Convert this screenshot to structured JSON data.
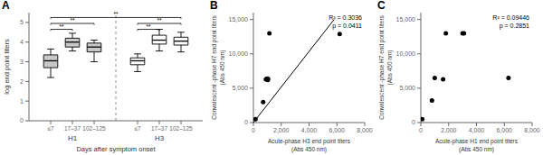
{
  "chart_data": [
    {
      "type": "box",
      "title": "A",
      "ylabel": "log end point titers",
      "xlabel": "Days after symptom onset",
      "categories": [
        "≤7",
        "17–37",
        "102–125"
      ],
      "series": [
        {
          "name": "H1",
          "color": "#c8c8c8",
          "boxes": [
            {
              "q1": 2.7,
              "median": 3.05,
              "q3": 3.35,
              "whislo": 2.2,
              "whishi": 3.65
            },
            {
              "q1": 3.75,
              "median": 4.0,
              "q3": 4.2,
              "whislo": 3.55,
              "whishi": 4.45
            },
            {
              "q1": 3.5,
              "median": 3.75,
              "q3": 3.95,
              "whislo": 3.0,
              "whishi": 4.1
            }
          ]
        },
        {
          "name": "H3",
          "color": "#ffffff",
          "boxes": [
            {
              "q1": 2.85,
              "median": 3.05,
              "q3": 3.2,
              "whislo": 2.5,
              "whishi": 3.4
            },
            {
              "q1": 3.9,
              "median": 4.1,
              "q3": 4.35,
              "whislo": 3.55,
              "whishi": 4.65
            },
            {
              "q1": 3.85,
              "median": 4.05,
              "q3": 4.25,
              "whislo": 3.5,
              "whishi": 4.5
            }
          ]
        }
      ],
      "ylim": [
        0,
        5.5
      ],
      "yticks": [
        0,
        1,
        2,
        3,
        4,
        5
      ],
      "grid": false,
      "brackets": [
        {
          "from": {
            "series": "H1",
            "category": "≤7"
          },
          "to": {
            "series": "H1",
            "category": "17–37"
          },
          "y": 4.65,
          "label": "**"
        },
        {
          "from": {
            "series": "H1",
            "category": "≤7"
          },
          "to": {
            "series": "H1",
            "category": "102–125"
          },
          "y": 4.95,
          "label": "**"
        },
        {
          "from": {
            "series": "H1",
            "category": "≤7"
          },
          "to": {
            "series": "H3",
            "category": "102–125"
          },
          "y": 5.25,
          "label": "**"
        },
        {
          "from": {
            "series": "H3",
            "category": "≤7"
          },
          "to": {
            "series": "H3",
            "category": "17–37"
          },
          "y": 4.65,
          "label": "**"
        },
        {
          "from": {
            "series": "H3",
            "category": "≤7"
          },
          "to": {
            "series": "H3",
            "category": "102–125"
          },
          "y": 4.95,
          "label": "**"
        }
      ]
    },
    {
      "type": "scatter",
      "title": "B",
      "xlabel": "Acute-phase H3 end point titers\n(Abs 450 nm)",
      "ylabel": "Convalescent -phase H7 end point titers\n(Abs 450 nm)",
      "annotation": "R² = 0.3036\np = 0.0411",
      "xlim": [
        0,
        8000
      ],
      "ylim": [
        0,
        16000
      ],
      "xticks": [
        0,
        {
          "value": 2000,
          "label": "2,000"
        },
        {
          "value": 4000,
          "label": "4,000"
        },
        {
          "value": 6000,
          "label": "6,000"
        },
        {
          "value": 8000,
          "label": "8,000"
        }
      ],
      "yticks": [
        0,
        {
          "value": 5000,
          "label": "5,000"
        },
        {
          "value": 10000,
          "label": "10,000"
        },
        {
          "value": 15000,
          "label": "15,000"
        }
      ],
      "grid": false,
      "series": [
        {
          "type": "scatter",
          "color": "black",
          "x": [
            150,
            700,
            900,
            980,
            1030,
            1050,
            1150,
            6200
          ],
          "values": [
            500,
            3000,
            6300,
            6400,
            6200,
            6350,
            13000,
            12900
          ]
        },
        {
          "type": "line",
          "color": "black",
          "x": [
            0,
            5800
          ],
          "values": [
            0,
            15000
          ]
        }
      ]
    },
    {
      "type": "scatter",
      "title": "C",
      "xlabel": "Acute-phase H1 end point titers\n(Abs 450 nm)",
      "ylabel": "Convalescent -phase H7 end point titers\n(Abs 450 nm)",
      "annotation": "R² = 0.09446\np = 0.2851",
      "xlim": [
        0,
        8000
      ],
      "ylim": [
        0,
        16000
      ],
      "xticks": [
        0,
        {
          "value": 2000,
          "label": "2,000"
        },
        {
          "value": 4000,
          "label": "4,000"
        },
        {
          "value": 6000,
          "label": "6,000"
        },
        {
          "value": 8000,
          "label": "8,000"
        }
      ],
      "yticks": [
        0,
        {
          "value": 5000,
          "label": "5,000"
        },
        {
          "value": 10000,
          "label": "10,000"
        },
        {
          "value": 15000,
          "label": "15,000"
        }
      ],
      "grid": false,
      "series": [
        {
          "type": "scatter",
          "color": "black",
          "x": [
            100,
            800,
            1000,
            1600,
            1800,
            3000,
            3100,
            6300
          ],
          "values": [
            500,
            3200,
            6500,
            6300,
            13000,
            13000,
            13000,
            6500
          ]
        }
      ]
    }
  ]
}
